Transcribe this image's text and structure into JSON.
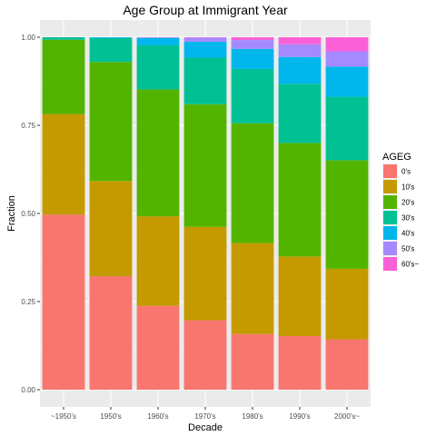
{
  "chart_data": {
    "type": "bar",
    "stacked": true,
    "title": "Age Group at Immigrant Year",
    "xlabel": "Decade",
    "ylabel": "Fraction",
    "categories": [
      "~1950's",
      "1950's",
      "1960's",
      "1970's",
      "1980's",
      "1990's",
      "2000's~"
    ],
    "ylim": [
      0,
      1
    ],
    "yticks": [
      0,
      0.25,
      0.5,
      0.75,
      1
    ],
    "ytick_labels": [
      "0.00",
      "0.25",
      "0.50",
      "0.75",
      "1.00"
    ],
    "grid": true,
    "legend": {
      "title": "AGEG",
      "position": "right"
    },
    "series": [
      {
        "name": "0's",
        "color": "#F8766D",
        "values": [
          0.497,
          0.322,
          0.238,
          0.197,
          0.158,
          0.152,
          0.143
        ]
      },
      {
        "name": "10's",
        "color": "#C49A00",
        "values": [
          0.285,
          0.27,
          0.254,
          0.265,
          0.258,
          0.226,
          0.2
        ]
      },
      {
        "name": "20's",
        "color": "#53B400",
        "values": [
          0.211,
          0.338,
          0.36,
          0.348,
          0.34,
          0.322,
          0.308
        ]
      },
      {
        "name": "30's",
        "color": "#00C094",
        "values": [
          0.007,
          0.068,
          0.125,
          0.132,
          0.154,
          0.168,
          0.18
        ]
      },
      {
        "name": "40's",
        "color": "#00B6EB",
        "values": [
          0.0,
          0.002,
          0.021,
          0.045,
          0.057,
          0.076,
          0.086
        ]
      },
      {
        "name": "50's",
        "color": "#A58AFF",
        "values": [
          0.0,
          0.0,
          0.002,
          0.012,
          0.025,
          0.036,
          0.043
        ]
      },
      {
        "name": "60's~",
        "color": "#FB61D7",
        "values": [
          0.0,
          0.0,
          0.0,
          0.001,
          0.008,
          0.02,
          0.04
        ]
      }
    ]
  }
}
